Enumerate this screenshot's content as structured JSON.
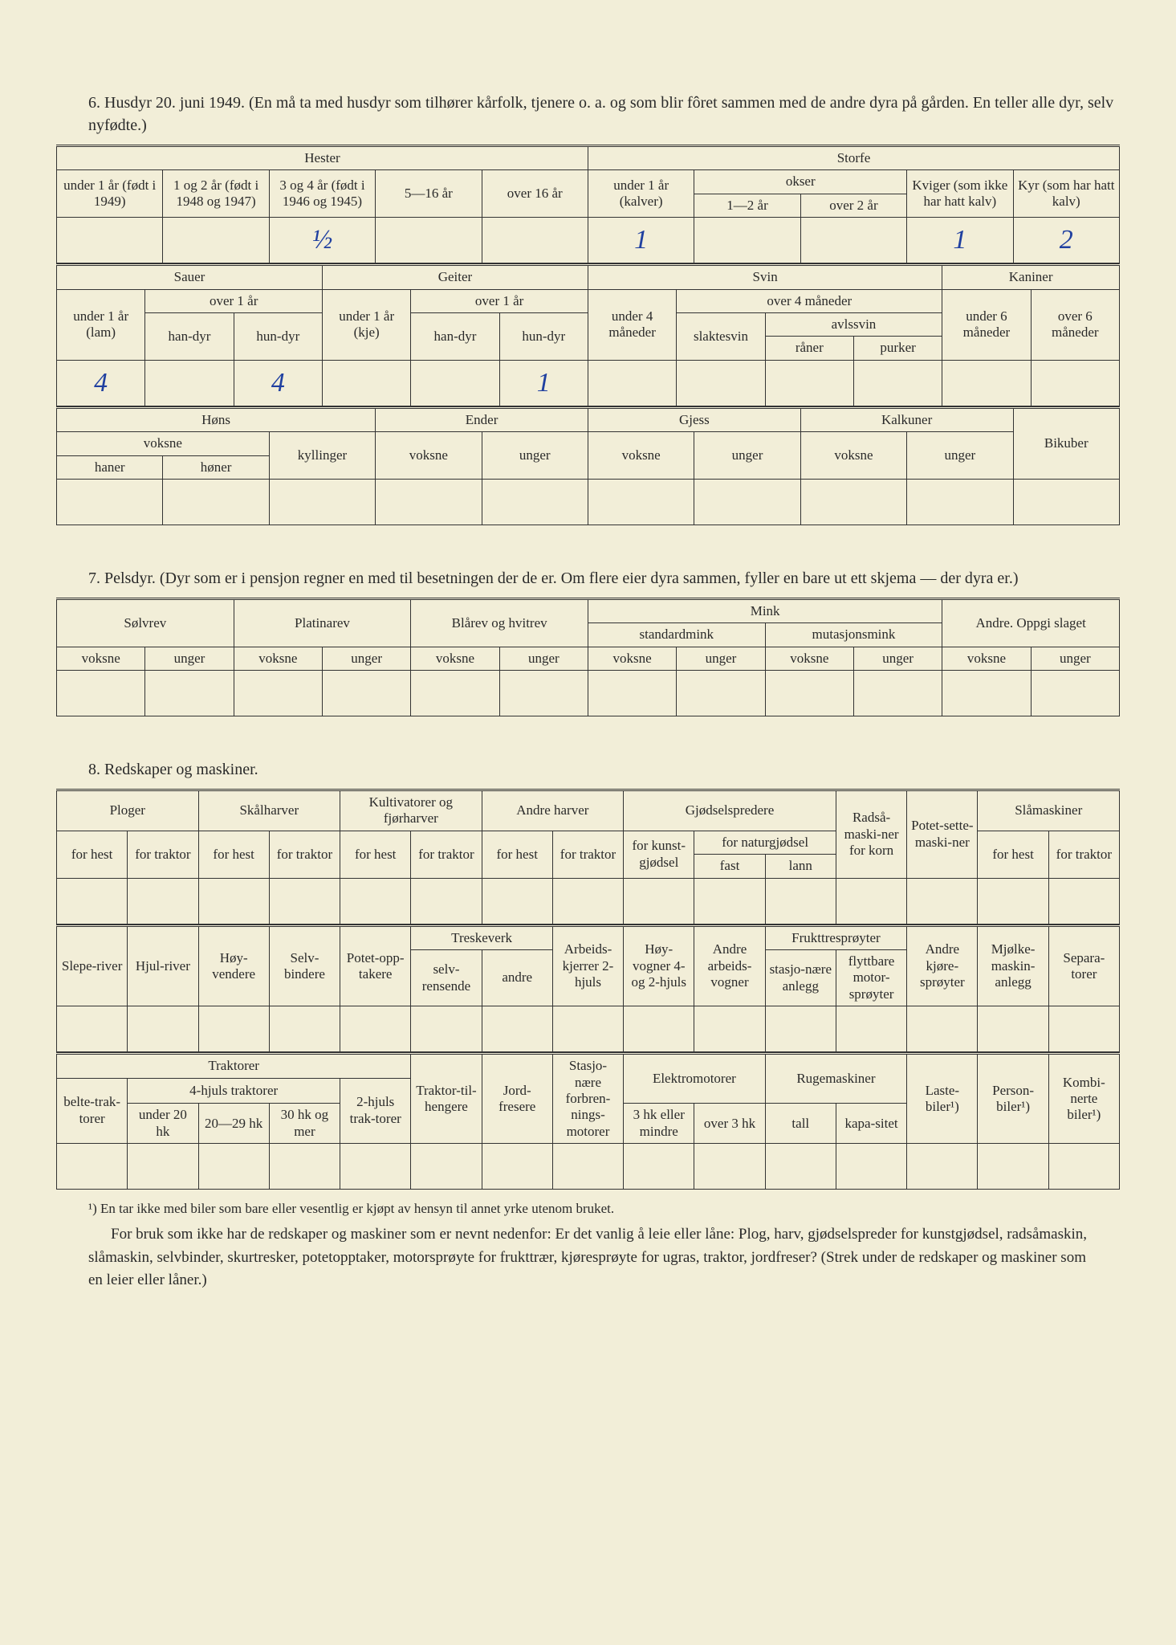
{
  "section6": {
    "heading": "6. Husdyr 20. juni 1949.  (En må ta med husdyr som tilhører kårfolk, tjenere o. a. og som blir fôret sammen med de andre dyra på gården.   En teller alle dyr, selv nyfødte.)",
    "hester": {
      "group": "Hester",
      "u1": "under 1 år (født i 1949)",
      "a12": "1 og 2 år (født i 1948 og 1947)",
      "a34": "3 og 4 år (født i 1946 og 1945)",
      "a516": "5—16 år",
      "o16": "over 16 år",
      "val_a34": "½"
    },
    "storfe": {
      "group": "Storfe",
      "kalver": "under 1 år (kalver)",
      "okser": "okser",
      "o12": "1—2 år",
      "oo2": "over 2 år",
      "kviger": "Kviger (som ikke har hatt kalv)",
      "kyr": "Kyr (som har hatt kalv)",
      "val_kalver": "1",
      "val_kviger": "1",
      "val_kyr": "2"
    },
    "sauer": {
      "group": "Sauer",
      "lam": "under 1 år (lam)",
      "over1": "over 1 år",
      "han": "han-dyr",
      "hun": "hun-dyr",
      "val_lam": "4",
      "val_hun": "4"
    },
    "geiter": {
      "group": "Geiter",
      "kje": "under 1 år (kje)",
      "over1": "over 1 år",
      "han": "han-dyr",
      "hun": "hun-dyr",
      "val_hun": "1"
    },
    "svin": {
      "group": "Svin",
      "u4": "under 4 måneder",
      "o4": "over 4 måneder",
      "slakt": "slaktesvin",
      "avls": "avlssvin",
      "raner": "råner",
      "purker": "purker"
    },
    "kaniner": {
      "group": "Kaniner",
      "u6": "under 6 måneder",
      "o6": "over 6 måneder"
    },
    "hons": {
      "group": "Høns",
      "voksne": "voksne",
      "haner": "haner",
      "honer": "høner",
      "kyll": "kyllinger"
    },
    "ender": {
      "group": "Ender",
      "voksne": "voksne",
      "unger": "unger"
    },
    "gjess": {
      "group": "Gjess",
      "voksne": "voksne",
      "unger": "unger"
    },
    "kalkuner": {
      "group": "Kalkuner",
      "voksne": "voksne",
      "unger": "unger"
    },
    "bikuber": "Bikuber"
  },
  "section7": {
    "heading": "7. Pelsdyr.  (Dyr som er i pensjon regner en med til besetningen der de er.   Om flere eier dyra sammen, fyller en bare ut ett skjema — der dyra er.)",
    "solvrev": "Sølvrev",
    "platinarev": "Platinarev",
    "blarev": "Blårev og hvitrev",
    "mink": "Mink",
    "stdmink": "standardmink",
    "mutmink": "mutasjonsmink",
    "andre": "Andre.  Oppgi slaget",
    "voksne": "voksne",
    "unger": "unger"
  },
  "section8": {
    "heading": "8. Redskaper og maskiner.",
    "row1": {
      "ploger": "Ploger",
      "skalharver": "Skålharver",
      "kultiv": "Kultivatorer og fjørharver",
      "andreharver": "Andre harver",
      "gjodsel": "Gjødselspredere",
      "radsa": "Radså-maski-ner for korn",
      "potet": "Potet-sette-maski-ner",
      "slamask": "Slåmaskiner",
      "forhest": "for hest",
      "fortraktor": "for traktor",
      "kunst": "for kunst-gjødsel",
      "natur": "for naturgjødsel",
      "fast": "fast",
      "lann": "lann"
    },
    "row2": {
      "slepe": "Slepe-river",
      "hjul": "Hjul-river",
      "hoy": "Høy-vendere",
      "selv": "Selv-bindere",
      "potetopp": "Potet-opp-takere",
      "treske": "Treskeverk",
      "selvrens": "selv-rensende",
      "andre": "andre",
      "arbeids": "Arbeids-kjerrer 2-hjuls",
      "hoyvogn": "Høy-vogner 4- og 2-hjuls",
      "andrevogn": "Andre arbeids-vogner",
      "frukt": "Frukttresprøyter",
      "stasjo": "stasjo-nære anlegg",
      "flytt": "flyttbare motor-sprøyter",
      "andrekjore": "Andre kjøre-sprøyter",
      "mjolke": "Mjølke-maskin-anlegg",
      "separa": "Separa-torer"
    },
    "row3": {
      "traktorer": "Traktorer",
      "belte": "belte-trak-torer",
      "hjul4": "4-hjuls traktorer",
      "u20": "under 20 hk",
      "a2029": "20—29 hk",
      "a30": "30 hk og mer",
      "hjul2": "2-hjuls trak-torer",
      "tilheng": "Traktor-til-hengere",
      "jord": "Jord-fresere",
      "stasj": "Stasjo-nære forbren-nings-motorer",
      "elektro": "Elektromotorer",
      "e3": "3 hk eller mindre",
      "eo3": "over 3 hk",
      "ruge": "Rugemaskiner",
      "tall": "tall",
      "kapa": "kapa-sitet",
      "laste": "Laste-biler¹)",
      "person": "Person-biler¹)",
      "kombi": "Kombi-nerte biler¹)"
    }
  },
  "footnote": "¹) En tar ikke med biler som bare eller vesentlig er kjøpt av hensyn til annet yrke utenom bruket.",
  "paragraph": "For bruk som ikke har de redskaper og maskiner som er nevnt nedenfor: Er det vanlig å leie eller låne: Plog, harv, gjødselspreder for kunstgjødsel, radsåmaskin, slåmaskin, selvbinder, skurtresker, potetopptaker, motorsprøyte for frukttrær, kjøresprøyte for ugras, traktor, jordfreser?  (Strek under de redskaper og maskiner som en leier eller låner.)"
}
